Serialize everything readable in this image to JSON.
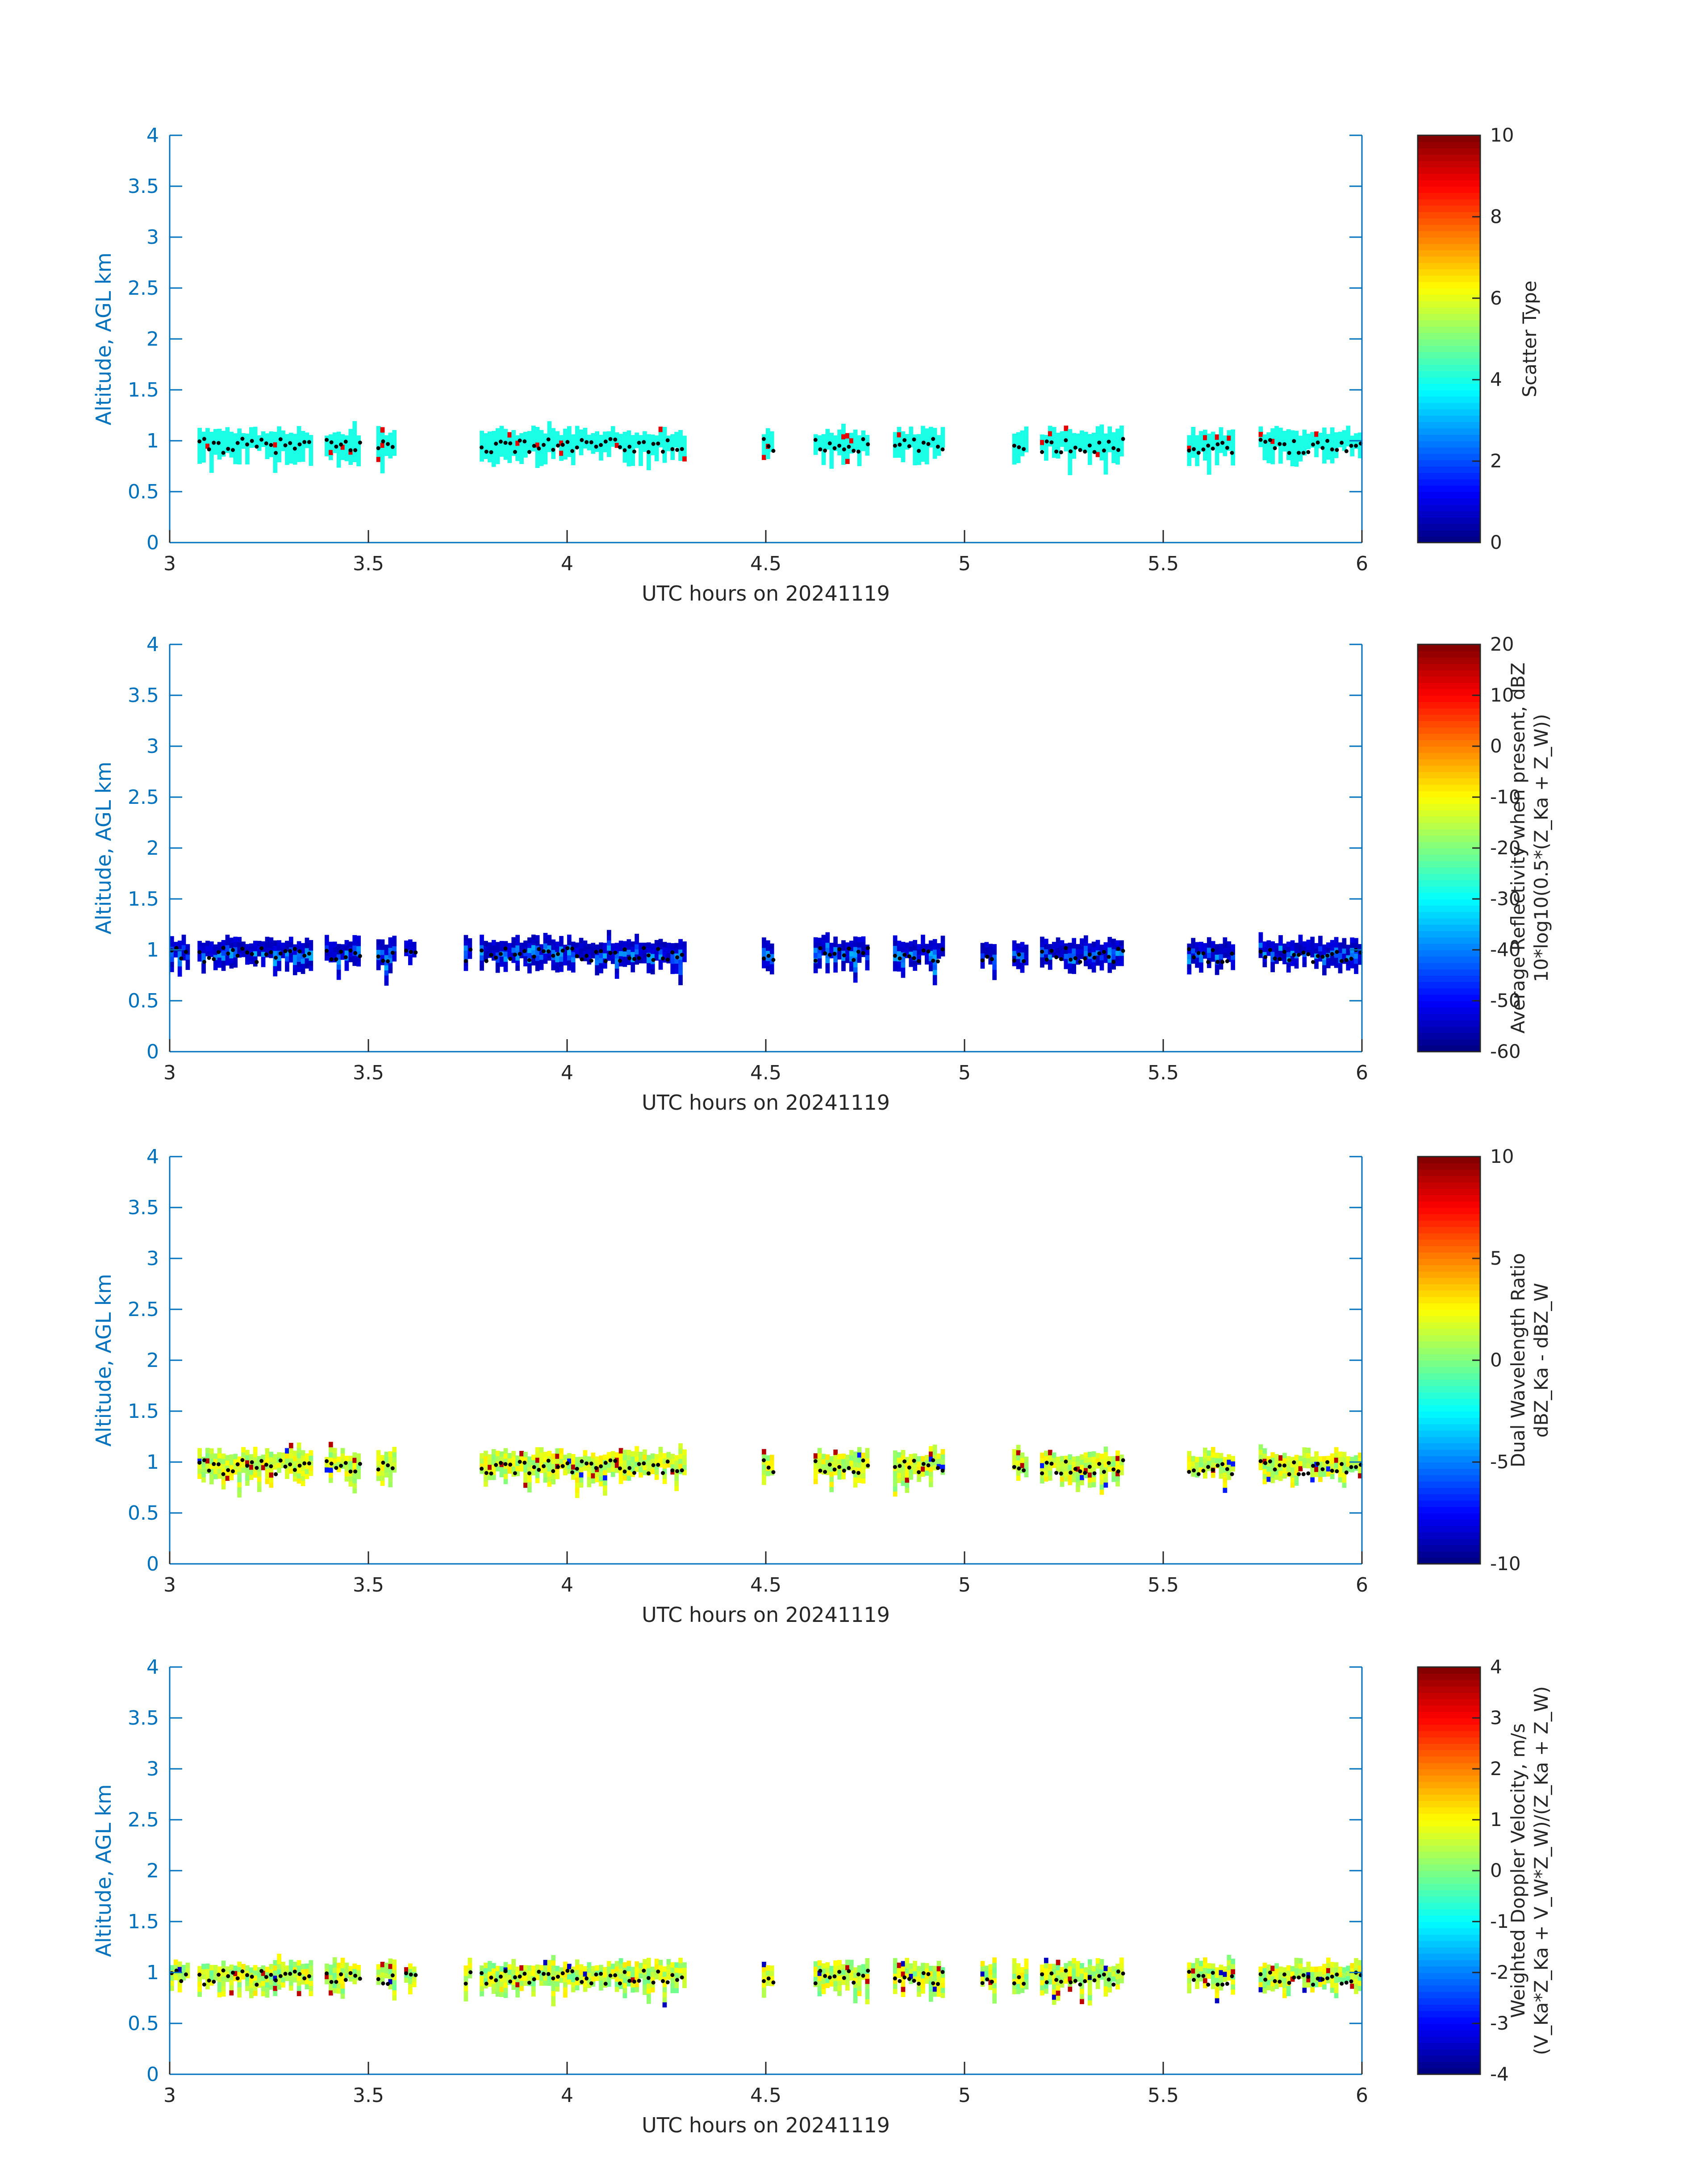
{
  "figure": {
    "xlabel": "UTC hours on 20241119",
    "ylabel": "Altitude, AGL km",
    "x_ticks": [
      "3",
      "3.5",
      "4",
      "4.5",
      "5",
      "5.5",
      "6"
    ],
    "y_ticks": [
      "0",
      "0.5",
      "1",
      "1.5",
      "2",
      "2.5",
      "3",
      "3.5",
      "4"
    ],
    "xlim": [
      3,
      6
    ],
    "ylim": [
      0,
      4
    ],
    "axis_color": "#0072bd",
    "label_color": "#262626",
    "colormap": "jet"
  },
  "chart_data": [
    {
      "type": "heatmap",
      "title": "",
      "xlabel": "UTC hours on 20241119",
      "ylabel": "Altitude, AGL km",
      "xlim": [
        3,
        6
      ],
      "ylim": [
        0,
        4
      ],
      "colorbar": {
        "label_lines": [
          "Scatter Type"
        ],
        "range": [
          0,
          10
        ],
        "ticks": [
          "10",
          "8",
          "6",
          "4",
          "2",
          "0"
        ]
      },
      "cloud_segments": [
        [
          3.07,
          3.36
        ],
        [
          3.39,
          3.48
        ],
        [
          3.52,
          3.57
        ],
        [
          3.78,
          4.3
        ],
        [
          4.49,
          4.52
        ],
        [
          4.62,
          4.76
        ],
        [
          4.82,
          4.95
        ],
        [
          5.12,
          5.16
        ],
        [
          5.19,
          5.4
        ],
        [
          5.56,
          5.68
        ],
        [
          5.74,
          6.0
        ]
      ],
      "field": {
        "dominant_value": 4,
        "secondary_value": 9,
        "secondary_fraction": 0.03
      },
      "cloud_top_points": "dots at about 0.9 - 1.05 km along each cloud segment"
    },
    {
      "type": "heatmap",
      "title": "",
      "xlabel": "UTC hours on 20241119",
      "ylabel": "Altitude, AGL km",
      "xlim": [
        3,
        6
      ],
      "ylim": [
        0,
        4
      ],
      "colorbar": {
        "label_lines": [
          "Average Reflectivity when present, dBZ",
          "10*log10(0.5*(Z_Ka + Z_W))"
        ],
        "range": [
          -60,
          20
        ],
        "ticks": [
          "20",
          "10",
          "0",
          "-10",
          "-20",
          "-30",
          "-40",
          "-50",
          "-60"
        ]
      },
      "cloud_segments": [
        [
          3.0,
          3.05
        ],
        [
          3.07,
          3.36
        ],
        [
          3.39,
          3.48
        ],
        [
          3.52,
          3.57
        ],
        [
          3.59,
          3.62
        ],
        [
          3.74,
          3.76
        ],
        [
          3.78,
          4.3
        ],
        [
          4.49,
          4.52
        ],
        [
          4.62,
          4.76
        ],
        [
          4.82,
          4.95
        ],
        [
          5.04,
          5.08
        ],
        [
          5.12,
          5.16
        ],
        [
          5.19,
          5.4
        ],
        [
          5.56,
          5.68
        ],
        [
          5.74,
          6.0
        ]
      ],
      "field": {
        "edge_value": -56,
        "core_value": -40
      },
      "cloud_top_points": "dots at about 0.9 - 1.05 km along each cloud segment"
    },
    {
      "type": "heatmap",
      "title": "",
      "xlabel": "UTC hours on 20241119",
      "ylabel": "Altitude, AGL km",
      "xlim": [
        3,
        6
      ],
      "ylim": [
        0,
        4
      ],
      "colorbar": {
        "label_lines": [
          "Dual Wavelength Ratio",
          "dBZ_Ka - dBZ_W"
        ],
        "range": [
          -10,
          10
        ],
        "ticks": [
          "10",
          "5",
          "0",
          "-5",
          "-10"
        ]
      },
      "cloud_segments": [
        [
          3.07,
          3.36
        ],
        [
          3.39,
          3.48
        ],
        [
          3.52,
          3.57
        ],
        [
          3.78,
          4.3
        ],
        [
          4.49,
          4.52
        ],
        [
          4.62,
          4.76
        ],
        [
          4.82,
          4.95
        ],
        [
          5.12,
          5.16
        ],
        [
          5.19,
          5.4
        ],
        [
          5.56,
          5.68
        ],
        [
          5.74,
          6.0
        ]
      ],
      "field": {
        "typical_range": [
          0,
          3
        ],
        "outlier_values": [
          9,
          -7
        ]
      },
      "cloud_top_points": "dots at about 0.9 - 1.05 km along each cloud segment"
    },
    {
      "type": "heatmap",
      "title": "",
      "xlabel": "UTC hours on 20241119",
      "ylabel": "Altitude, AGL km",
      "xlim": [
        3,
        6
      ],
      "ylim": [
        0,
        4
      ],
      "colorbar": {
        "label_lines": [
          "Weighted Doppler Velocity, m/s",
          "(V_Ka*Z_Ka + V_W*Z_W)/(Z_Ka + Z_W)"
        ],
        "range": [
          -4,
          4
        ],
        "ticks": [
          "4",
          "3",
          "2",
          "1",
          "0",
          "-1",
          "-2",
          "-3",
          "-4"
        ]
      },
      "cloud_segments": [
        [
          3.0,
          3.05
        ],
        [
          3.07,
          3.36
        ],
        [
          3.39,
          3.48
        ],
        [
          3.52,
          3.57
        ],
        [
          3.59,
          3.62
        ],
        [
          3.74,
          3.76
        ],
        [
          3.78,
          4.3
        ],
        [
          4.49,
          4.52
        ],
        [
          4.62,
          4.76
        ],
        [
          4.82,
          4.95
        ],
        [
          5.04,
          5.08
        ],
        [
          5.12,
          5.16
        ],
        [
          5.19,
          5.4
        ],
        [
          5.56,
          5.68
        ],
        [
          5.74,
          6.0
        ]
      ],
      "field": {
        "typical_range": [
          -0.2,
          1.2
        ],
        "outlier_values": [
          3.5,
          -3.5
        ]
      },
      "cloud_top_points": "dots at about 0.9 - 1.05 km along each cloud segment"
    }
  ]
}
